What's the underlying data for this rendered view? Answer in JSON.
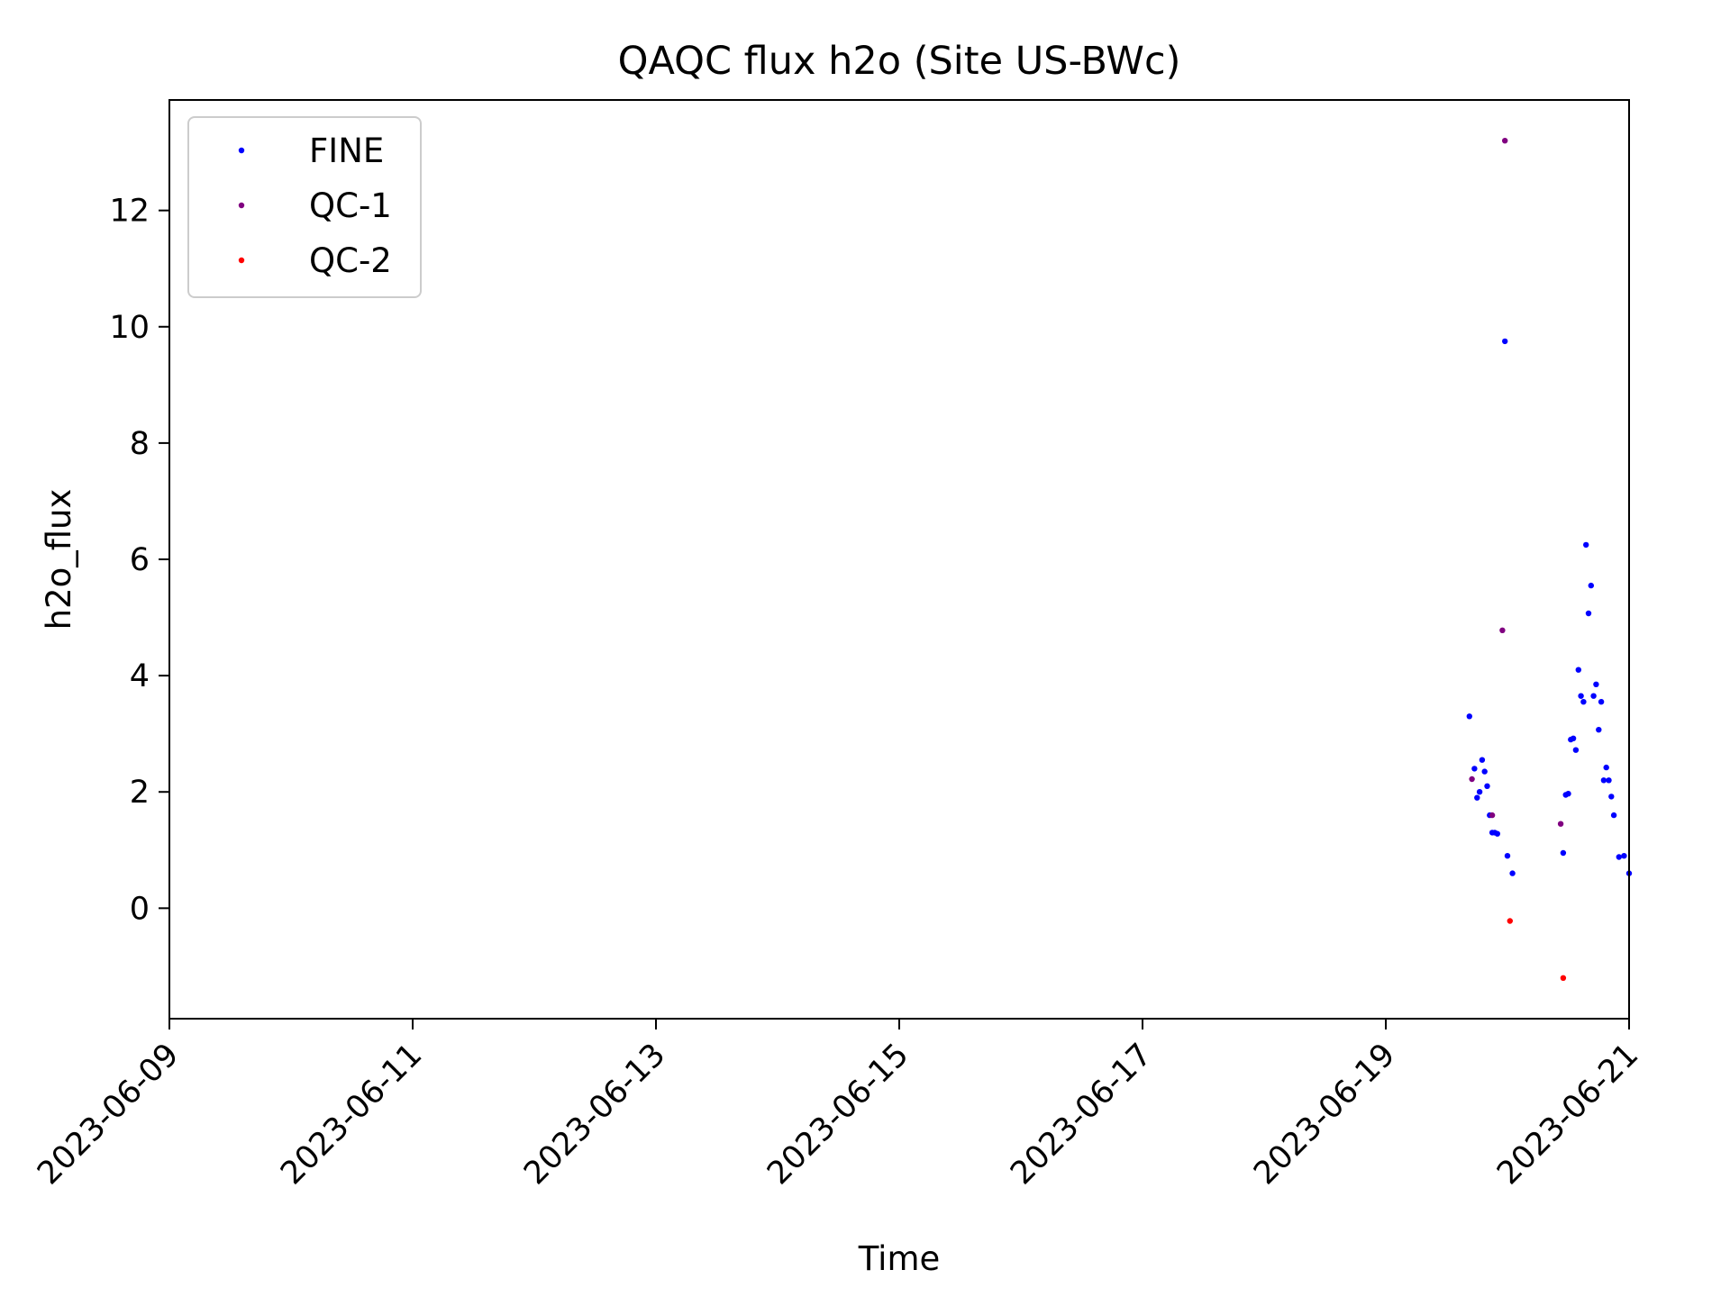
{
  "chart_data": {
    "type": "scatter",
    "title": "QAQC flux h2o (Site US-BWc)",
    "xlabel": "Time",
    "ylabel": "h2o_flux",
    "xlim": [
      "2023-06-09T00:00",
      "2023-06-21T00:00"
    ],
    "ylim": [
      -1.9,
      13.9
    ],
    "x_ticks": [
      "2023-06-09",
      "2023-06-11",
      "2023-06-13",
      "2023-06-15",
      "2023-06-17",
      "2023-06-19",
      "2023-06-21"
    ],
    "y_ticks": [
      0,
      2,
      4,
      6,
      8,
      10,
      12
    ],
    "grid": false,
    "legend_position": "top-left",
    "series": [
      {
        "name": "FINE",
        "color": "#0000ff",
        "points": [
          [
            "2023-06-19T16:30",
            3.3
          ],
          [
            "2023-06-19T17:30",
            2.4
          ],
          [
            "2023-06-19T18:00",
            1.9
          ],
          [
            "2023-06-19T18:30",
            2.0
          ],
          [
            "2023-06-19T19:00",
            2.55
          ],
          [
            "2023-06-19T19:30",
            2.35
          ],
          [
            "2023-06-19T20:00",
            2.1
          ],
          [
            "2023-06-19T20:30",
            1.6
          ],
          [
            "2023-06-19T21:00",
            1.3
          ],
          [
            "2023-06-19T21:30",
            1.3
          ],
          [
            "2023-06-19T22:00",
            1.28
          ],
          [
            "2023-06-19T23:30",
            9.75
          ],
          [
            "2023-06-20T00:00",
            0.9
          ],
          [
            "2023-06-20T01:00",
            0.6
          ],
          [
            "2023-06-20T11:00",
            0.95
          ],
          [
            "2023-06-20T11:30",
            1.95
          ],
          [
            "2023-06-20T12:00",
            1.97
          ],
          [
            "2023-06-20T12:30",
            2.9
          ],
          [
            "2023-06-20T13:00",
            2.92
          ],
          [
            "2023-06-20T13:30",
            2.72
          ],
          [
            "2023-06-20T14:00",
            4.1
          ],
          [
            "2023-06-20T14:30",
            3.65
          ],
          [
            "2023-06-20T15:00",
            3.55
          ],
          [
            "2023-06-20T15:30",
            6.25
          ],
          [
            "2023-06-20T16:00",
            5.07
          ],
          [
            "2023-06-20T16:30",
            5.55
          ],
          [
            "2023-06-20T17:00",
            3.65
          ],
          [
            "2023-06-20T17:30",
            3.85
          ],
          [
            "2023-06-20T18:00",
            3.07
          ],
          [
            "2023-06-20T18:30",
            3.55
          ],
          [
            "2023-06-20T19:00",
            2.2
          ],
          [
            "2023-06-20T19:30",
            2.42
          ],
          [
            "2023-06-20T20:00",
            2.2
          ],
          [
            "2023-06-20T20:30",
            1.92
          ],
          [
            "2023-06-20T21:00",
            1.6
          ],
          [
            "2023-06-20T22:00",
            0.88
          ],
          [
            "2023-06-20T23:00",
            0.9
          ],
          [
            "2023-06-21T00:00",
            0.6
          ]
        ]
      },
      {
        "name": "QC-1",
        "color": "#800080",
        "points": [
          [
            "2023-06-19T17:00",
            2.22
          ],
          [
            "2023-06-19T21:00",
            1.6
          ],
          [
            "2023-06-19T23:00",
            4.78
          ],
          [
            "2023-06-19T23:30",
            13.2
          ],
          [
            "2023-06-20T10:30",
            1.45
          ]
        ]
      },
      {
        "name": "QC-2",
        "color": "#ff0000",
        "points": [
          [
            "2023-06-20T00:30",
            -0.22
          ],
          [
            "2023-06-20T11:00",
            -1.2
          ]
        ]
      }
    ]
  }
}
